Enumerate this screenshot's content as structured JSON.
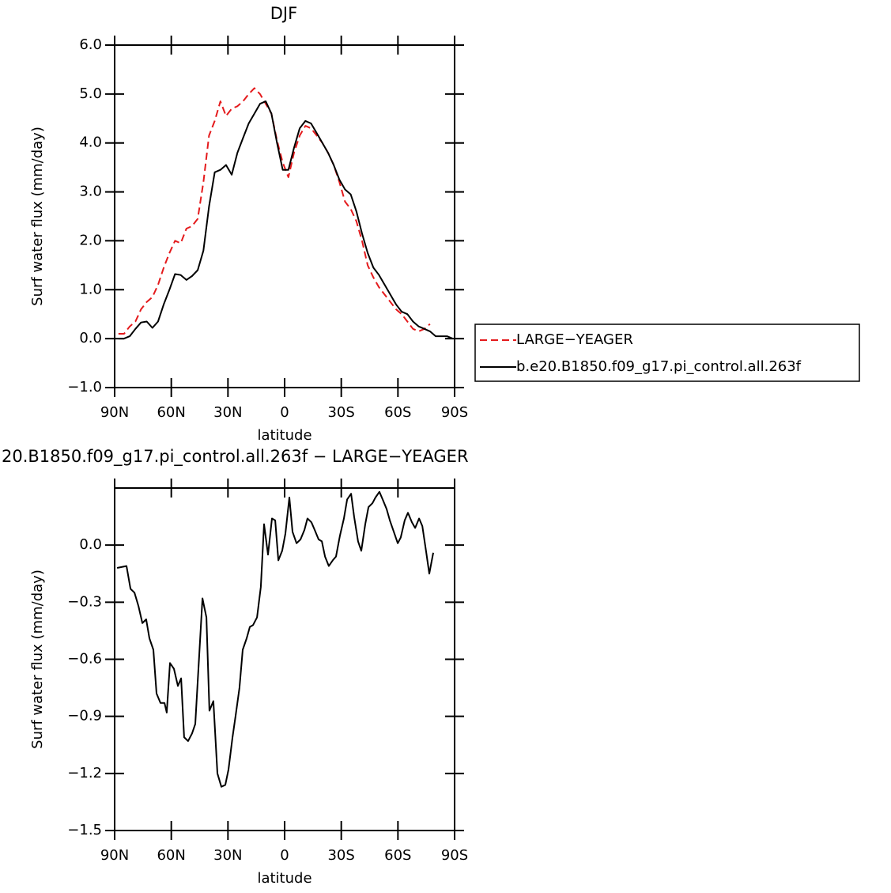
{
  "chart_data": [
    {
      "type": "line",
      "title": "DJF",
      "xlabel": "latitude",
      "ylabel": "Surf water flux (mm/day)",
      "xlim": [
        90,
        -90
      ],
      "xticks": [
        {
          "value": 90,
          "label": "90N"
        },
        {
          "value": 60,
          "label": "60N"
        },
        {
          "value": 30,
          "label": "30N"
        },
        0,
        {
          "value": -30,
          "label": "30S"
        },
        {
          "value": -60,
          "label": "60S"
        },
        {
          "value": -90,
          "label": "90S"
        }
      ],
      "ylim": [
        -1,
        6
      ],
      "yticks": [
        {
          "value": -1,
          "label": "−1.0"
        },
        {
          "value": 0,
          "label": "0.0"
        },
        {
          "value": 1,
          "label": "1.0"
        },
        {
          "value": 2,
          "label": "2.0"
        },
        {
          "value": 3,
          "label": "3.0"
        },
        {
          "value": 4,
          "label": "4.0"
        },
        {
          "value": 5,
          "label": "5.0"
        },
        {
          "value": 6,
          "label": "6.0"
        }
      ],
      "legend": "right",
      "x": [
        88,
        85,
        82,
        79,
        76,
        73,
        70,
        67,
        64,
        61,
        58,
        55,
        52,
        49,
        46,
        43,
        40,
        37,
        34,
        31,
        28,
        25,
        22,
        19,
        16,
        13,
        10,
        7,
        4,
        1,
        -2,
        -5,
        -8,
        -11,
        -14,
        -17,
        -20,
        -23,
        -26,
        -29,
        -32,
        -35,
        -38,
        -41,
        -44,
        -47,
        -50,
        -53,
        -56,
        -59,
        -62,
        -65,
        -68,
        -71,
        -74,
        -77,
        -80,
        -83,
        -86,
        -89
      ],
      "series": [
        {
          "name": "LARGE−YEAGER",
          "color": "#e41a1c",
          "line_style": "dashed",
          "values": [
            0.1,
            0.1,
            0.25,
            0.35,
            0.6,
            0.75,
            0.85,
            1.1,
            1.45,
            1.75,
            2.0,
            1.95,
            2.25,
            2.3,
            2.45,
            3.2,
            4.15,
            4.45,
            4.85,
            4.55,
            4.7,
            4.75,
            4.85,
            5.0,
            5.12,
            5.0,
            4.8,
            4.6,
            4.05,
            3.6,
            3.3,
            3.8,
            4.15,
            4.35,
            4.3,
            4.15,
            4.0,
            3.8,
            3.55,
            3.2,
            2.8,
            2.65,
            2.4,
            2.0,
            1.5,
            1.25,
            1.05,
            0.9,
            0.75,
            0.6,
            0.5,
            0.35,
            0.2,
            0.15,
            0.2,
            0.3,
            null,
            null,
            null,
            null
          ]
        },
        {
          "name": "b.e20.B1850.f09_g17.pi_control.all.263f",
          "color": "#000000",
          "line_style": "solid",
          "values": [
            0.0,
            0.0,
            0.05,
            0.2,
            0.33,
            0.35,
            0.22,
            0.35,
            0.7,
            1.0,
            1.32,
            1.3,
            1.2,
            1.28,
            1.4,
            1.8,
            2.7,
            3.4,
            3.45,
            3.55,
            3.35,
            3.8,
            4.1,
            4.4,
            4.6,
            4.8,
            4.85,
            4.6,
            4.0,
            3.45,
            3.45,
            3.9,
            4.3,
            4.45,
            4.4,
            4.2,
            4.0,
            3.8,
            3.55,
            3.25,
            3.05,
            2.95,
            2.6,
            2.15,
            1.75,
            1.45,
            1.3,
            1.1,
            0.9,
            0.7,
            0.55,
            0.5,
            0.35,
            0.25,
            0.2,
            0.15,
            0.05,
            0.05,
            0.05,
            0.0
          ]
        }
      ]
    },
    {
      "type": "line",
      "title": "20.B1850.f09_g17.pi_control.all.263f − LARGE−YEAGER",
      "xlabel": "latitude",
      "ylabel": "Surf water flux (mm/day)",
      "xlim": [
        90,
        -90
      ],
      "xticks": [
        {
          "value": 90,
          "label": "90N"
        },
        {
          "value": 60,
          "label": "60N"
        },
        {
          "value": 30,
          "label": "30N"
        },
        0,
        {
          "value": -30,
          "label": "30S"
        },
        {
          "value": -60,
          "label": "60S"
        },
        {
          "value": -90,
          "label": "90S"
        }
      ],
      "ylim": [
        -1.5,
        0.3
      ],
      "yticks": [
        {
          "value": -1.5,
          "label": "−1.5"
        },
        {
          "value": -1.2,
          "label": "−1.2"
        },
        {
          "value": -0.9,
          "label": "−0.9"
        },
        {
          "value": -0.6,
          "label": "−0.6"
        },
        {
          "value": -0.3,
          "label": "−0.3"
        },
        {
          "value": 0,
          "label": "0.0"
        }
      ],
      "x": [
        88.7,
        83.7,
        81.6,
        79.5,
        77.4,
        75.3,
        73.3,
        71.6,
        69.5,
        67.8,
        65.7,
        63.6,
        62.4,
        60.7,
        58.6,
        56.5,
        54.8,
        53.2,
        51.1,
        49,
        47.3,
        43.5,
        41.4,
        39.8,
        37.7,
        35.6,
        33.5,
        31.4,
        29.7,
        27.6,
        26,
        23.9,
        22.2,
        20.1,
        18.4,
        16.7,
        14.6,
        12.6,
        10.9,
        8.8,
        6.7,
        5,
        3.3,
        1.3,
        -0.4,
        -2.5,
        -4.2,
        -6.3,
        -8.4,
        -10.5,
        -12.1,
        -14.2,
        -15.9,
        -18,
        -19.7,
        -21.4,
        -23.4,
        -25.5,
        -27.2,
        -29.3,
        -31.4,
        -33.1,
        -35.2,
        -36.8,
        -38.9,
        -40.6,
        -42.7,
        -44.4,
        -46.5,
        -48.1,
        -50.2,
        -51.9,
        -54,
        -55.7,
        -57.8,
        -59.9,
        -61.5,
        -63.6,
        -65.3,
        -67.4,
        -69.1,
        -71.2,
        -72.9,
        -75,
        -76.6,
        -78.7
      ],
      "color": "#000000",
      "values": [
        -0.12,
        -0.11,
        -0.23,
        -0.25,
        -0.32,
        -0.41,
        -0.39,
        -0.49,
        -0.55,
        -0.78,
        -0.83,
        -0.83,
        -0.88,
        -0.62,
        -0.65,
        -0.74,
        -0.7,
        -1.01,
        -1.03,
        -0.99,
        -0.94,
        -0.28,
        -0.38,
        -0.87,
        -0.82,
        -1.2,
        -1.27,
        -1.26,
        -1.18,
        -1.01,
        -0.9,
        -0.75,
        -0.55,
        -0.49,
        -0.43,
        -0.42,
        -0.38,
        -0.22,
        0.11,
        -0.05,
        0.14,
        0.13,
        -0.08,
        -0.03,
        0.06,
        0.25,
        0.07,
        0.01,
        0.03,
        0.08,
        0.14,
        0.12,
        0.08,
        0.03,
        0.02,
        -0.06,
        -0.11,
        -0.08,
        -0.06,
        0.05,
        0.14,
        0.24,
        0.27,
        0.15,
        0.02,
        -0.03,
        0.11,
        0.2,
        0.22,
        0.25,
        0.28,
        0.24,
        0.19,
        0.13,
        0.07,
        0.01,
        0.04,
        0.13,
        0.17,
        0.12,
        0.09,
        0.14,
        0.1,
        -0.04,
        -0.15,
        -0.04
      ]
    }
  ]
}
